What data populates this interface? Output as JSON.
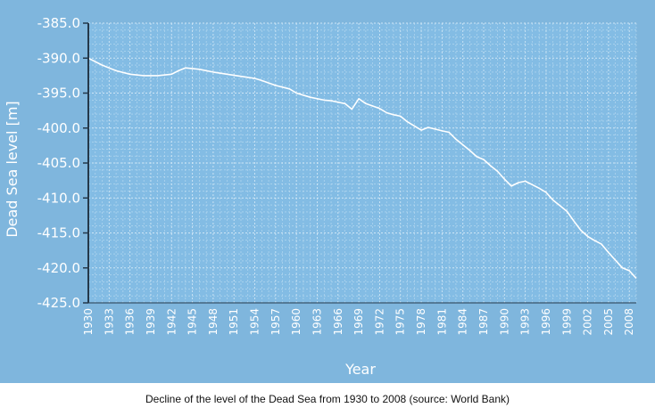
{
  "chart_data": {
    "type": "line",
    "title": "",
    "xlabel": "Year",
    "ylabel": "Dead Sea level [m]",
    "ylim": [
      -425.0,
      -385.0
    ],
    "xlim": [
      1930,
      2009
    ],
    "y_ticks": [
      "-385.0",
      "-390.0",
      "-395.0",
      "-400.0",
      "-405.0",
      "-410.0",
      "-415.0",
      "-420.0",
      "-425.0"
    ],
    "y_tick_values": [
      -385,
      -390,
      -395,
      -400,
      -405,
      -410,
      -415,
      -420,
      -425
    ],
    "x_ticks": [
      "1930",
      "1933",
      "1936",
      "1939",
      "1942",
      "1945",
      "1948",
      "1951",
      "1954",
      "1957",
      "1960",
      "1963",
      "1966",
      "1969",
      "1972",
      "1975",
      "1978",
      "1981",
      "1984",
      "1987",
      "1990",
      "1993",
      "1996",
      "1999",
      "2002",
      "2005",
      "2008"
    ],
    "grid": true,
    "series": [
      {
        "name": "Dead Sea level",
        "x": [
          1930,
          1932,
          1934,
          1936,
          1938,
          1940,
          1942,
          1943,
          1944,
          1946,
          1948,
          1950,
          1952,
          1954,
          1955,
          1957,
          1959,
          1960,
          1962,
          1964,
          1965,
          1966,
          1967,
          1968,
          1969,
          1970,
          1972,
          1973,
          1974,
          1975,
          1976,
          1978,
          1979,
          1981,
          1982,
          1983,
          1985,
          1986,
          1987,
          1988,
          1989,
          1990,
          1991,
          1992,
          1993,
          1994,
          1995,
          1996,
          1997,
          1998,
          1999,
          2000,
          2001,
          2002,
          2003,
          2004,
          2005,
          2006,
          2007,
          2008,
          2009
        ],
        "y": [
          -390.0,
          -391.0,
          -391.8,
          -392.3,
          -392.5,
          -392.5,
          -392.3,
          -391.8,
          -391.4,
          -391.6,
          -392.0,
          -392.3,
          -392.6,
          -392.9,
          -393.2,
          -393.9,
          -394.4,
          -395.0,
          -395.6,
          -396.0,
          -396.1,
          -396.3,
          -396.5,
          -397.3,
          -395.8,
          -396.5,
          -397.2,
          -397.8,
          -398.1,
          -398.3,
          -399.1,
          -400.3,
          -399.9,
          -400.4,
          -400.6,
          -401.6,
          -403.2,
          -404.1,
          -404.5,
          -405.4,
          -406.2,
          -407.3,
          -408.3,
          -407.8,
          -407.6,
          -408.1,
          -408.6,
          -409.2,
          -410.3,
          -411.1,
          -411.9,
          -413.3,
          -414.6,
          -415.5,
          -416.1,
          -416.6,
          -417.8,
          -418.9,
          -420.0,
          -420.4,
          -421.5
        ]
      }
    ],
    "caption": "Decline of the level of the Dead Sea from 1930 to 2008 (source: World Bank)"
  },
  "colors": {
    "panel_bg": "#7fb6dd",
    "plot_bg": "#83bce4",
    "grid": "#d4e9f7",
    "line": "#ffffff",
    "axis": "#24384a",
    "text": "#ffffff",
    "caption": "#111111"
  }
}
